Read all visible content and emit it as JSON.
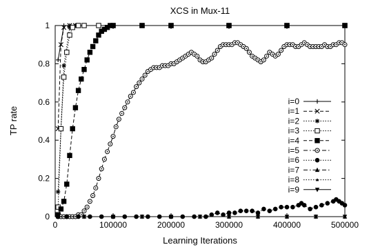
{
  "chart_data": {
    "type": "line",
    "title": "XCS in Mux-11",
    "xlabel": "Learning Iterations",
    "ylabel": "TP rate",
    "xlim": [
      0,
      500000
    ],
    "ylim": [
      0,
      1
    ],
    "xticks": [
      0,
      100000,
      200000,
      300000,
      400000,
      500000
    ],
    "xtick_labels": [
      "0",
      "100000",
      "200000",
      "300000",
      "400000",
      "500000"
    ],
    "yticks": [
      0,
      0.2,
      0.4,
      0.6,
      0.8,
      1
    ],
    "ytick_labels": [
      "0",
      "0.2",
      "0.4",
      "0.6",
      "0.8",
      "1"
    ],
    "grid": false,
    "legend_position": "right",
    "series": [
      {
        "name": "i=0",
        "marker": "plus",
        "dash": "solid",
        "x": [
          5000,
          15000,
          25000,
          35000,
          50000,
          75000,
          100000,
          150000,
          200000,
          300000,
          400000,
          500000
        ],
        "y": [
          0.82,
          1.0,
          1.0,
          1.0,
          1.0,
          1.0,
          1.0,
          1.0,
          1.0,
          1.0,
          1.0,
          1.0
        ]
      },
      {
        "name": "i=1",
        "marker": "cross",
        "dash": "dashed",
        "x": [
          5000,
          10000,
          15000,
          25000,
          35000,
          50000,
          75000,
          100000,
          150000,
          200000,
          300000,
          400000,
          500000
        ],
        "y": [
          0.46,
          0.9,
          0.99,
          1.0,
          1.0,
          1.0,
          1.0,
          1.0,
          1.0,
          1.0,
          1.0,
          1.0,
          1.0
        ]
      },
      {
        "name": "i=2",
        "marker": "star",
        "dash": "dotted",
        "x": [
          5000,
          10000,
          15000,
          25000,
          35000,
          50000,
          75000,
          100000,
          150000,
          200000,
          300000,
          400000,
          500000
        ],
        "y": [
          0.13,
          0.46,
          0.79,
          0.99,
          1.0,
          1.0,
          1.0,
          1.0,
          1.0,
          1.0,
          1.0,
          1.0,
          1.0
        ]
      },
      {
        "name": "i=3",
        "marker": "open-square",
        "dash": "dotted",
        "x": [
          5000,
          10000,
          15000,
          20000,
          25000,
          30000,
          40000,
          50000,
          75000,
          100000,
          150000,
          200000,
          300000,
          400000,
          500000
        ],
        "y": [
          0.05,
          0.46,
          0.73,
          0.86,
          0.95,
          0.99,
          1.0,
          1.0,
          1.0,
          1.0,
          1.0,
          1.0,
          1.0,
          1.0,
          1.0
        ]
      },
      {
        "name": "i=4",
        "marker": "filled-square",
        "dash": "dashed",
        "x": [
          5000,
          10000,
          15000,
          20000,
          25000,
          30000,
          35000,
          40000,
          45000,
          50000,
          55000,
          60000,
          65000,
          70000,
          75000,
          80000,
          85000,
          90000,
          95000,
          100000,
          150000,
          200000,
          300000,
          400000,
          500000
        ],
        "y": [
          0.01,
          0.04,
          0.08,
          0.17,
          0.32,
          0.46,
          0.57,
          0.66,
          0.72,
          0.77,
          0.82,
          0.86,
          0.89,
          0.92,
          0.95,
          0.97,
          0.98,
          0.99,
          1.0,
          1.0,
          1.0,
          1.0,
          1.0,
          1.0,
          1.0
        ]
      },
      {
        "name": "i=5",
        "marker": "open-circle",
        "dash": "dashdot",
        "x": [
          5000,
          10000,
          15000,
          20000,
          25000,
          30000,
          35000,
          40000,
          45000,
          50000,
          55000,
          60000,
          65000,
          70000,
          75000,
          80000,
          85000,
          90000,
          95000,
          100000,
          105000,
          110000,
          115000,
          120000,
          125000,
          130000,
          135000,
          140000,
          145000,
          150000,
          155000,
          160000,
          165000,
          170000,
          175000,
          180000,
          185000,
          190000,
          195000,
          200000,
          205000,
          210000,
          215000,
          220000,
          225000,
          230000,
          235000,
          240000,
          245000,
          250000,
          255000,
          260000,
          265000,
          270000,
          275000,
          280000,
          285000,
          290000,
          295000,
          300000,
          305000,
          310000,
          315000,
          320000,
          325000,
          330000,
          335000,
          340000,
          345000,
          350000,
          355000,
          360000,
          365000,
          370000,
          375000,
          380000,
          385000,
          390000,
          395000,
          400000,
          405000,
          410000,
          415000,
          420000,
          425000,
          430000,
          435000,
          440000,
          445000,
          450000,
          455000,
          460000,
          465000,
          470000,
          475000,
          480000,
          485000,
          490000,
          495000,
          500000
        ],
        "y": [
          0.0,
          0.0,
          0.0,
          0.0,
          0.0,
          0.0,
          0.0,
          0.01,
          0.01,
          0.03,
          0.05,
          0.08,
          0.11,
          0.15,
          0.2,
          0.25,
          0.3,
          0.34,
          0.38,
          0.42,
          0.47,
          0.51,
          0.54,
          0.57,
          0.6,
          0.63,
          0.65,
          0.68,
          0.7,
          0.72,
          0.74,
          0.76,
          0.77,
          0.78,
          0.78,
          0.78,
          0.79,
          0.79,
          0.79,
          0.8,
          0.8,
          0.81,
          0.82,
          0.83,
          0.84,
          0.85,
          0.86,
          0.85,
          0.84,
          0.82,
          0.81,
          0.81,
          0.82,
          0.83,
          0.85,
          0.87,
          0.89,
          0.9,
          0.9,
          0.9,
          0.9,
          0.91,
          0.91,
          0.9,
          0.89,
          0.88,
          0.86,
          0.84,
          0.83,
          0.82,
          0.81,
          0.82,
          0.84,
          0.86,
          0.85,
          0.84,
          0.85,
          0.87,
          0.89,
          0.9,
          0.9,
          0.9,
          0.89,
          0.89,
          0.9,
          0.91,
          0.9,
          0.89,
          0.89,
          0.89,
          0.89,
          0.89,
          0.9,
          0.89,
          0.89,
          0.9,
          0.9,
          0.91,
          0.91,
          0.9
        ]
      },
      {
        "name": "i=6",
        "marker": "filled-circle",
        "dash": "dotted",
        "x": [
          5000,
          20000,
          40000,
          60000,
          80000,
          100000,
          120000,
          140000,
          160000,
          180000,
          200000,
          220000,
          240000,
          260000,
          270000,
          280000,
          290000,
          300000,
          310000,
          320000,
          330000,
          340000,
          350000,
          360000,
          370000,
          380000,
          390000,
          400000,
          410000,
          420000,
          425000,
          430000,
          440000,
          450000,
          460000,
          470000,
          480000,
          485000,
          490000,
          495000,
          500000
        ],
        "y": [
          0.0,
          0.0,
          0.0,
          0.0,
          0.0,
          0.0,
          0.0,
          0.0,
          0.0,
          0.0,
          0.0,
          0.0,
          0.0,
          0.0,
          0.01,
          0.02,
          0.01,
          0.02,
          0.02,
          0.03,
          0.03,
          0.03,
          0.02,
          0.04,
          0.03,
          0.04,
          0.05,
          0.05,
          0.05,
          0.06,
          0.07,
          0.06,
          0.04,
          0.05,
          0.06,
          0.07,
          0.08,
          0.09,
          0.08,
          0.07,
          0.06
        ]
      },
      {
        "name": "i=7",
        "marker": "triangle-up",
        "dash": "dashdot",
        "x": [
          5000,
          50000,
          100000,
          150000,
          200000,
          250000,
          300000,
          350000,
          400000,
          450000,
          500000
        ],
        "y": [
          0.0,
          0.0,
          0.0,
          0.0,
          0.0,
          0.0,
          0.0,
          0.0,
          0.0,
          0.0,
          0.0
        ]
      },
      {
        "name": "i=8",
        "marker": "small-triangle-up",
        "dash": "dotted",
        "x": [
          5000,
          50000,
          100000,
          150000,
          200000,
          250000,
          300000,
          350000,
          400000,
          450000,
          500000
        ],
        "y": [
          0.0,
          0.0,
          0.0,
          0.0,
          0.0,
          0.0,
          0.0,
          0.0,
          0.0,
          0.0,
          0.0
        ]
      },
      {
        "name": "i=9",
        "marker": "triangle-down",
        "dash": "solid",
        "x": [
          5000,
          50000,
          100000,
          150000,
          200000,
          250000,
          300000,
          350000,
          400000,
          450000,
          500000
        ],
        "y": [
          0.0,
          0.0,
          0.0,
          0.0,
          0.0,
          0.0,
          0.0,
          0.0,
          0.0,
          0.0,
          0.0
        ]
      }
    ]
  }
}
